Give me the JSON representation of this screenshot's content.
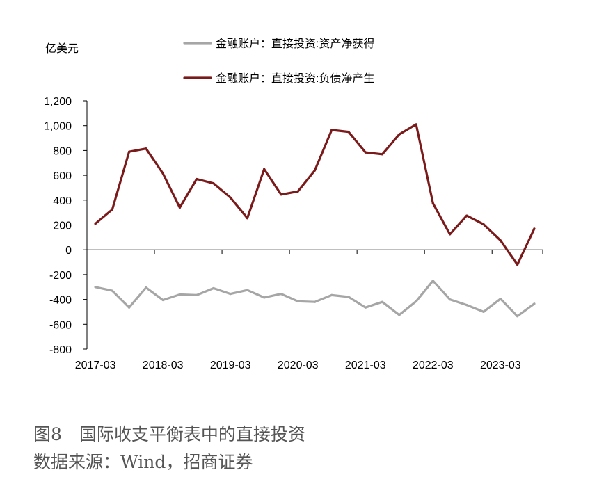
{
  "figure": {
    "caption": "图8　国际收支平衡表中的直接投资",
    "source": "数据来源：Wind，招商证券"
  },
  "chart_data": {
    "type": "line",
    "unit_label": "亿美元",
    "x": [
      "2017-03",
      "2017-06",
      "2017-09",
      "2017-12",
      "2018-03",
      "2018-06",
      "2018-09",
      "2018-12",
      "2019-03",
      "2019-06",
      "2019-09",
      "2019-12",
      "2020-03",
      "2020-06",
      "2020-09",
      "2020-12",
      "2021-03",
      "2021-06",
      "2021-09",
      "2021-12",
      "2022-03",
      "2022-06",
      "2022-09",
      "2022-12",
      "2023-03",
      "2023-06",
      "2023-09"
    ],
    "x_tick_labels": [
      "2017-03",
      "2018-03",
      "2019-03",
      "2020-03",
      "2021-03",
      "2022-03",
      "2023-03"
    ],
    "ylim": [
      -800,
      1200
    ],
    "y_ticks": [
      -800,
      -600,
      -400,
      -200,
      0,
      200,
      400,
      600,
      800,
      1000,
      1200
    ],
    "y_tick_labels": [
      "-800",
      "-600",
      "-400",
      "-200",
      "0",
      "200",
      "400",
      "600",
      "800",
      "1,000",
      "1,200"
    ],
    "grid": false,
    "legend_position": "top",
    "series": [
      {
        "name": "金融账户：直接投资:资产净获得",
        "color": "#a6a6a6",
        "values": [
          -300,
          -330,
          -465,
          -305,
          -405,
          -360,
          -365,
          -310,
          -355,
          -325,
          -385,
          -355,
          -415,
          -420,
          -365,
          -380,
          -465,
          -420,
          -525,
          -415,
          -250,
          -400,
          -445,
          -500,
          -395,
          -535,
          -435
        ]
      },
      {
        "name": "金融账户：直接投资:负债净产生",
        "color": "#7b1a1a",
        "values": [
          210,
          325,
          790,
          815,
          615,
          340,
          570,
          535,
          420,
          255,
          650,
          445,
          470,
          640,
          965,
          950,
          785,
          770,
          930,
          1010,
          375,
          125,
          275,
          205,
          75,
          -120,
          170
        ]
      }
    ]
  }
}
